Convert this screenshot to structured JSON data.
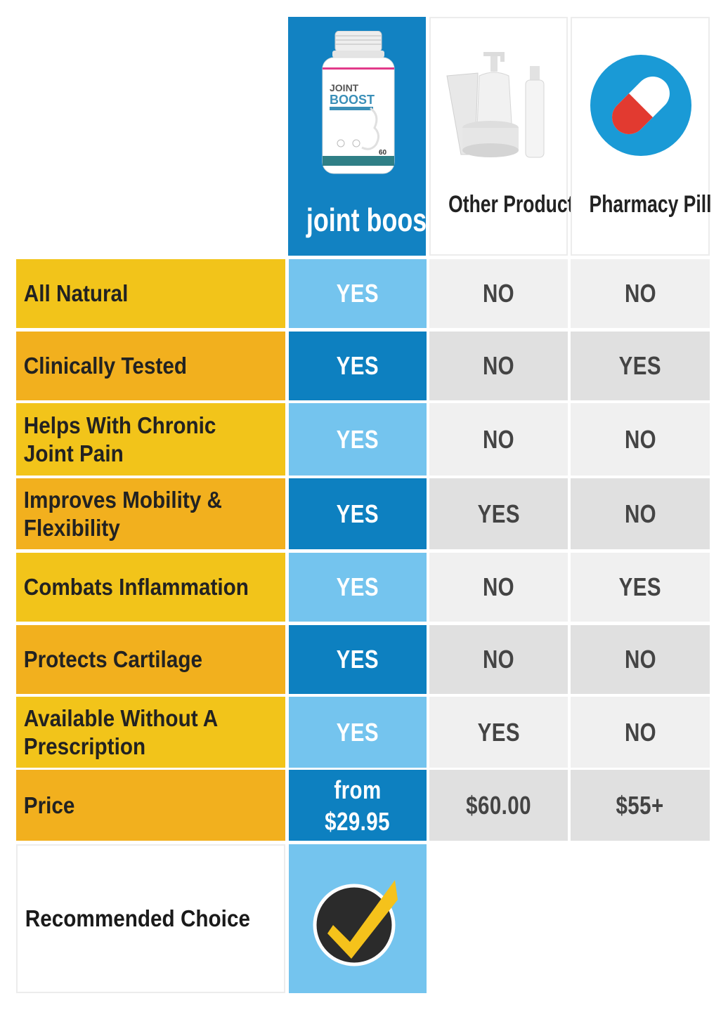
{
  "headers": {
    "jointboost_name": "joint boost",
    "jointboost_bottle_brand_line1": "JOINT",
    "jointboost_bottle_brand_line2": "BOOST",
    "jointboost_bottle_count": "60",
    "other_product": "Other Product",
    "pharmacy_pill": "Pharmacy Pill"
  },
  "rows": [
    {
      "label": "All Natural",
      "jointboost": "YES",
      "other": "NO",
      "pharmacy": "NO"
    },
    {
      "label": "Clinically Tested",
      "jointboost": "YES",
      "other": "NO",
      "pharmacy": "YES"
    },
    {
      "label": "Helps With Chronic Joint Pain",
      "jointboost": "YES",
      "other": "NO",
      "pharmacy": "NO"
    },
    {
      "label": "Improves Mobility & Flexibility",
      "jointboost": "YES",
      "other": "YES",
      "pharmacy": "NO"
    },
    {
      "label": "Combats Inflammation",
      "jointboost": "YES",
      "other": "NO",
      "pharmacy": "YES"
    },
    {
      "label": "Protects Cartilage",
      "jointboost": "YES",
      "other": "NO",
      "pharmacy": "NO"
    },
    {
      "label": "Available Without A Prescription",
      "jointboost": "YES",
      "other": "YES",
      "pharmacy": "NO"
    }
  ],
  "price": {
    "label": "Price",
    "jointboost_line1": "from",
    "jointboost_line2": "$29.95",
    "other": "$60.00",
    "pharmacy": "$55+"
  },
  "recommended": {
    "label": "Recommended Choice"
  },
  "colors": {
    "jointboost_header": "#1282c2",
    "jointboost_light": "#74c4ee",
    "jointboost_dark": "#0d80c0",
    "label_yellow": "#f2c41a",
    "label_orange": "#f2b01e",
    "gray_light": "#f0f0f0",
    "gray_dark": "#e0e0e0",
    "pill_circle": "#1a9ad6",
    "pill_red": "#e23a30",
    "check_yellow": "#f5c21b"
  }
}
